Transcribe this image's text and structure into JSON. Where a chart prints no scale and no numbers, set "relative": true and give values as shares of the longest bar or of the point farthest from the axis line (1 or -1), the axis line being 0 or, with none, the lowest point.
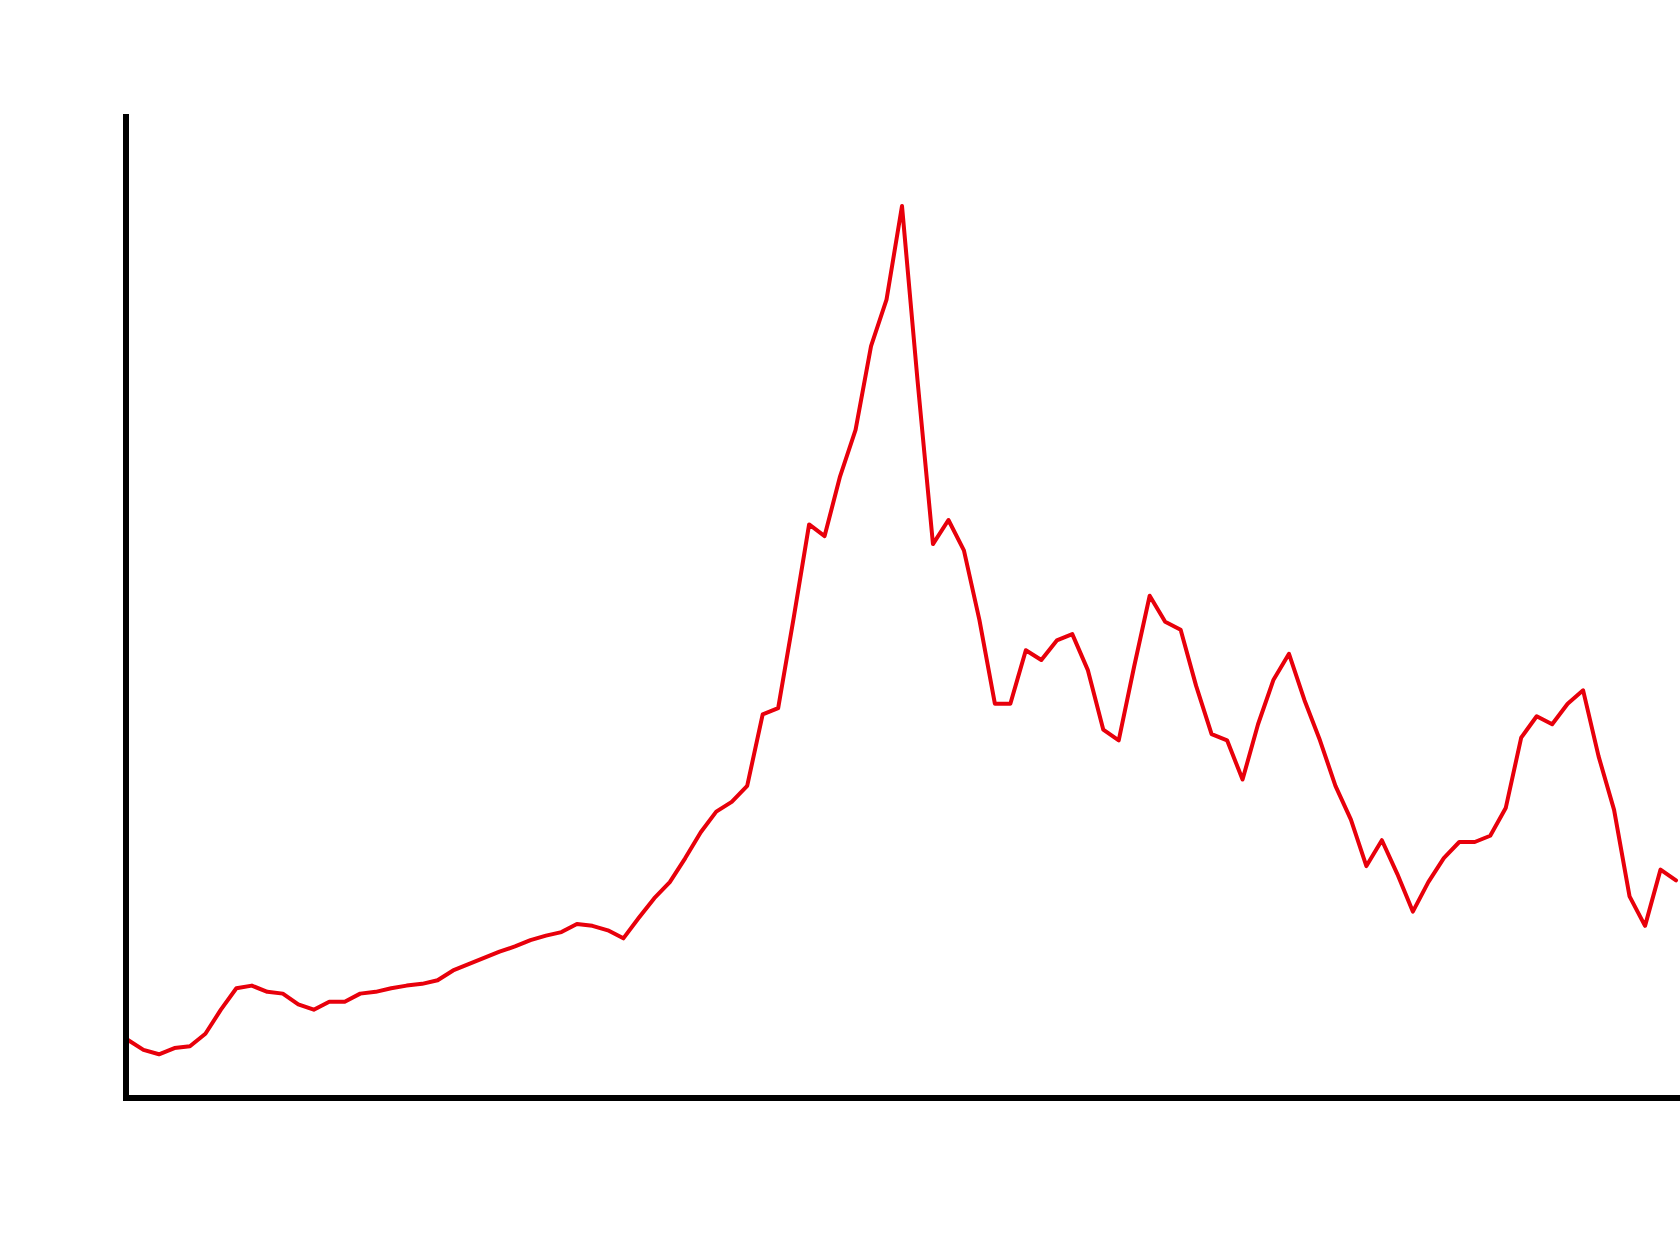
{
  "chart_data": {
    "type": "line",
    "relative": true,
    "color": "#e8000b",
    "categories": [
      null,
      null,
      null,
      null,
      null,
      null,
      null,
      null,
      null,
      null,
      null,
      null,
      null,
      null,
      null,
      null,
      null,
      null,
      null,
      null,
      null,
      null,
      null,
      null,
      null,
      null,
      null,
      null,
      null,
      null,
      null,
      null,
      null,
      null,
      null,
      null,
      null,
      null,
      null,
      null,
      null,
      null,
      null,
      null,
      null,
      null,
      null,
      null,
      null,
      null,
      null,
      null,
      null,
      null,
      null,
      null,
      null,
      null,
      null,
      null,
      null,
      null,
      null,
      null,
      null,
      null,
      null,
      null,
      null,
      null,
      null,
      null,
      null,
      null,
      null,
      null,
      null,
      null,
      null,
      null,
      null,
      null,
      null,
      null,
      null,
      null,
      null,
      null,
      null,
      null,
      null,
      null,
      null,
      null,
      null,
      null,
      null,
      null,
      null,
      null,
      null
    ],
    "values": [
      0.065,
      0.054,
      0.049,
      0.056,
      0.058,
      0.072,
      0.099,
      0.123,
      0.126,
      0.119,
      0.117,
      0.105,
      0.099,
      0.108,
      0.108,
      0.117,
      0.119,
      0.123,
      0.126,
      0.128,
      0.132,
      0.143,
      0.15,
      0.157,
      0.164,
      0.17,
      0.177,
      0.182,
      0.186,
      0.195,
      0.193,
      0.188,
      0.179,
      0.202,
      0.224,
      0.242,
      0.269,
      0.298,
      0.321,
      0.332,
      0.35,
      0.43,
      0.437,
      0.538,
      0.643,
      0.63,
      0.697,
      0.749,
      0.843,
      0.895,
      1,
      0.805,
      0.621,
      0.648,
      0.614,
      0.536,
      0.442,
      0.442,
      0.502,
      0.491,
      0.513,
      0.52,
      0.48,
      0.413,
      0.401,
      0.484,
      0.563,
      0.534,
      0.525,
      0.462,
      0.408,
      0.401,
      0.357,
      0.419,
      0.469,
      0.498,
      0.446,
      0.401,
      0.35,
      0.312,
      0.26,
      0.289,
      0.251,
      0.209,
      0.242,
      0.269,
      0.287,
      0.287,
      0.294,
      0.325,
      0.404,
      0.428,
      0.419,
      0.442,
      0.457,
      0.383,
      0.323,
      0.226,
      0.193,
      0.256,
      0.244
    ]
  }
}
